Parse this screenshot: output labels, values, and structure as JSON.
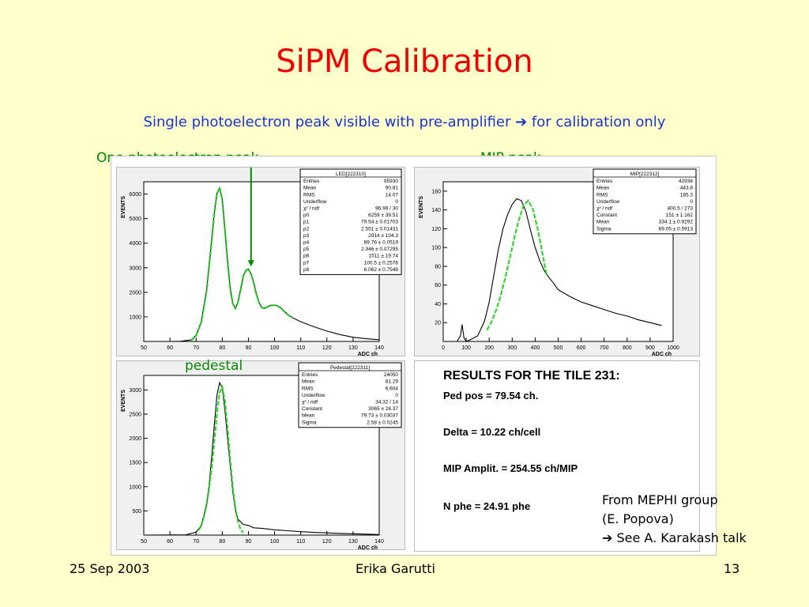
{
  "slide": {
    "title": "SiPM Calibration",
    "subtitle": "Single photoelectron peak visible with pre-amplifier ➔ for calibration only",
    "label_one_pe": "One photoelectron peak",
    "label_mip": "MIP peak",
    "label_pedestal": "pedestal",
    "credit_lines": [
      "From MEPHI  group",
      "(E. Popova)",
      "➔ See A. Karakash talk"
    ],
    "footer_date": "25 Sep 2003",
    "footer_author": "Erika Garutti",
    "footer_page": "13"
  },
  "results": {
    "heading": "RESULTS FOR THE TILE 231:",
    "lines": [
      "Ped pos = 79.54 ch.",
      "Delta  = 10.22 ch/cell",
      "MIP Amplit. = 254.55 ch/MIP",
      "N phe = 24.91 phe"
    ]
  },
  "colors": {
    "title": "#ee0000",
    "text_blue": "#1a33cc",
    "label_green": "#008800",
    "fit": "#22cc22",
    "background": "#ffffcc"
  },
  "chart_data": [
    {
      "type": "line",
      "stats_title": "LED[222310]",
      "stats": [
        [
          "Entries",
          "95930"
        ],
        [
          "Mean",
          "90.81"
        ],
        [
          "RMS",
          "14.07"
        ],
        [
          "Underflow",
          "0"
        ],
        [
          "χ² / ndf",
          "96.99 / 30"
        ],
        [
          "p0",
          "6259 ± 39.51"
        ],
        [
          "p1",
          "79.54 ± 0.01703"
        ],
        [
          "p2",
          "2.551 ± 0.01431"
        ],
        [
          "p3",
          "2914 ± 104.3"
        ],
        [
          "p4",
          "89.76 ± 0.0519"
        ],
        [
          "p5",
          "2.946 ± 0.07295"
        ],
        [
          "p6",
          "1511 ± 19.74"
        ],
        [
          "p7",
          "100.5 ± 0.2576"
        ],
        [
          "p8",
          "6.062 ± 0.7548"
        ]
      ],
      "ylabel": "EVENTS",
      "xlabel": "ADC ch",
      "xlim": [
        50,
        140
      ],
      "ylim": [
        0,
        6500
      ],
      "xticks": [
        50,
        60,
        70,
        80,
        90,
        100,
        110,
        120,
        130,
        140
      ],
      "yticks": [
        1000,
        2000,
        3000,
        4000,
        5000,
        6000
      ],
      "x": [
        50,
        55,
        60,
        64,
        68,
        70,
        72,
        74,
        76,
        77,
        78,
        79,
        80,
        81,
        82,
        83,
        84,
        85,
        86,
        87,
        88,
        89,
        90,
        91,
        92,
        93,
        94,
        95,
        96,
        97,
        98,
        99,
        100,
        101,
        102,
        103,
        104,
        105,
        107,
        110,
        115,
        120,
        125,
        130,
        135,
        140
      ],
      "y": [
        0,
        0,
        0,
        5,
        60,
        250,
        800,
        2100,
        4200,
        5300,
        6050,
        6250,
        5800,
        4600,
        3300,
        2200,
        1550,
        1350,
        1600,
        2100,
        2650,
        2900,
        2950,
        2750,
        2400,
        1950,
        1600,
        1400,
        1350,
        1400,
        1450,
        1480,
        1480,
        1460,
        1400,
        1300,
        1200,
        1100,
        960,
        800,
        600,
        420,
        280,
        170,
        110,
        70
      ],
      "fit_x": [
        68,
        70,
        72,
        74,
        76,
        77,
        78,
        79,
        80,
        81,
        82,
        83,
        84,
        85,
        86,
        87,
        88,
        89,
        90,
        91,
        92,
        93,
        94,
        95,
        96,
        97,
        98,
        99,
        100,
        101,
        102,
        103,
        104,
        105,
        107
      ],
      "fit_y": [
        40,
        230,
        780,
        2050,
        4150,
        5250,
        6000,
        6259,
        5780,
        4580,
        3280,
        2180,
        1540,
        1340,
        1590,
        2090,
        2640,
        2890,
        2940,
        2740,
        2390,
        1940,
        1590,
        1390,
        1340,
        1390,
        1440,
        1470,
        1470,
        1450,
        1390,
        1290,
        1190,
        1090,
        950
      ],
      "annotation_arrow": {
        "x": 91,
        "y": 3050
      }
    },
    {
      "type": "line",
      "stats_title": "MIP[222312]",
      "stats": [
        [
          "Entries",
          "42936"
        ],
        [
          "Mean",
          "443.8"
        ],
        [
          "RMS",
          "185.3"
        ],
        [
          "Underflow",
          "0"
        ],
        [
          "χ² / ndf",
          "400.5 / 273"
        ],
        [
          "Constant",
          "151 ± 1.162"
        ],
        [
          "Mean",
          "334.1 ± 0.9292"
        ],
        [
          "Sigma",
          "69.05 ± 0.5913"
        ]
      ],
      "ylabel": "EVENTS",
      "xlabel": "ADC ch",
      "xlim": [
        0,
        1000
      ],
      "ylim": [
        0,
        170
      ],
      "xticks": [
        0,
        100,
        200,
        300,
        400,
        500,
        600,
        700,
        800,
        900,
        1000
      ],
      "yticks": [
        20,
        40,
        60,
        80,
        100,
        120,
        140,
        160
      ],
      "x": [
        0,
        60,
        75,
        82,
        90,
        100,
        120,
        150,
        180,
        200,
        220,
        240,
        260,
        280,
        300,
        320,
        340,
        360,
        380,
        400,
        420,
        440,
        460,
        480,
        500,
        550,
        600,
        650,
        700,
        750,
        800,
        850,
        900,
        950
      ],
      "y": [
        0,
        0,
        6,
        18,
        4,
        0,
        2,
        6,
        22,
        42,
        70,
        98,
        120,
        135,
        146,
        152,
        150,
        138,
        118,
        100,
        86,
        75,
        68,
        62,
        55,
        48,
        42,
        38,
        34,
        30,
        27,
        23,
        20,
        17
      ],
      "fit_x": [
        190,
        210,
        230,
        250,
        270,
        290,
        310,
        330,
        350,
        370,
        390,
        410,
        430,
        450
      ],
      "fit_y": [
        12,
        21,
        33,
        49,
        68,
        89,
        111,
        130,
        145,
        150,
        141,
        121,
        96,
        70
      ]
    },
    {
      "type": "line",
      "stats_title": "Pedestal[222311]",
      "stats": [
        [
          "Entries",
          "24050"
        ],
        [
          "Mean",
          "81.29"
        ],
        [
          "RMS",
          "6.604"
        ],
        [
          "Underflow",
          "0"
        ],
        [
          "χ² / ndf",
          "34.32 / 14"
        ],
        [
          "Constant",
          "3065 ± 28.37"
        ],
        [
          "Mean",
          "79.73 ± 0.03037"
        ],
        [
          "Sigma",
          "2.58 ± 0.0245"
        ]
      ],
      "ylabel": "EVENTS",
      "xlabel": "ADC ch",
      "xlim": [
        50,
        140
      ],
      "ylim": [
        0,
        3300
      ],
      "xticks": [
        50,
        60,
        70,
        80,
        90,
        100,
        110,
        120,
        130,
        140
      ],
      "yticks": [
        500,
        1000,
        1500,
        2000,
        2500,
        3000
      ],
      "x": [
        50,
        66,
        70,
        72,
        74,
        75,
        76,
        77,
        78,
        79,
        80,
        81,
        82,
        83,
        84,
        85,
        86,
        88,
        90,
        92,
        95,
        100,
        105,
        110,
        115,
        120,
        125,
        130,
        135,
        140
      ],
      "y": [
        0,
        5,
        60,
        200,
        620,
        1050,
        1650,
        2300,
        2900,
        3150,
        3050,
        2600,
        2000,
        1450,
        900,
        520,
        330,
        220,
        200,
        150,
        140,
        110,
        90,
        70,
        55,
        45,
        35,
        28,
        20,
        12
      ],
      "fit_x": [
        71,
        72,
        73,
        74,
        75,
        76,
        77,
        78,
        79,
        80,
        81,
        82,
        83,
        84,
        85,
        86,
        87,
        88
      ],
      "fit_y": [
        100,
        200,
        380,
        640,
        980,
        1420,
        1960,
        2520,
        2950,
        3060,
        2780,
        2220,
        1580,
        1000,
        560,
        280,
        120,
        50
      ]
    }
  ]
}
